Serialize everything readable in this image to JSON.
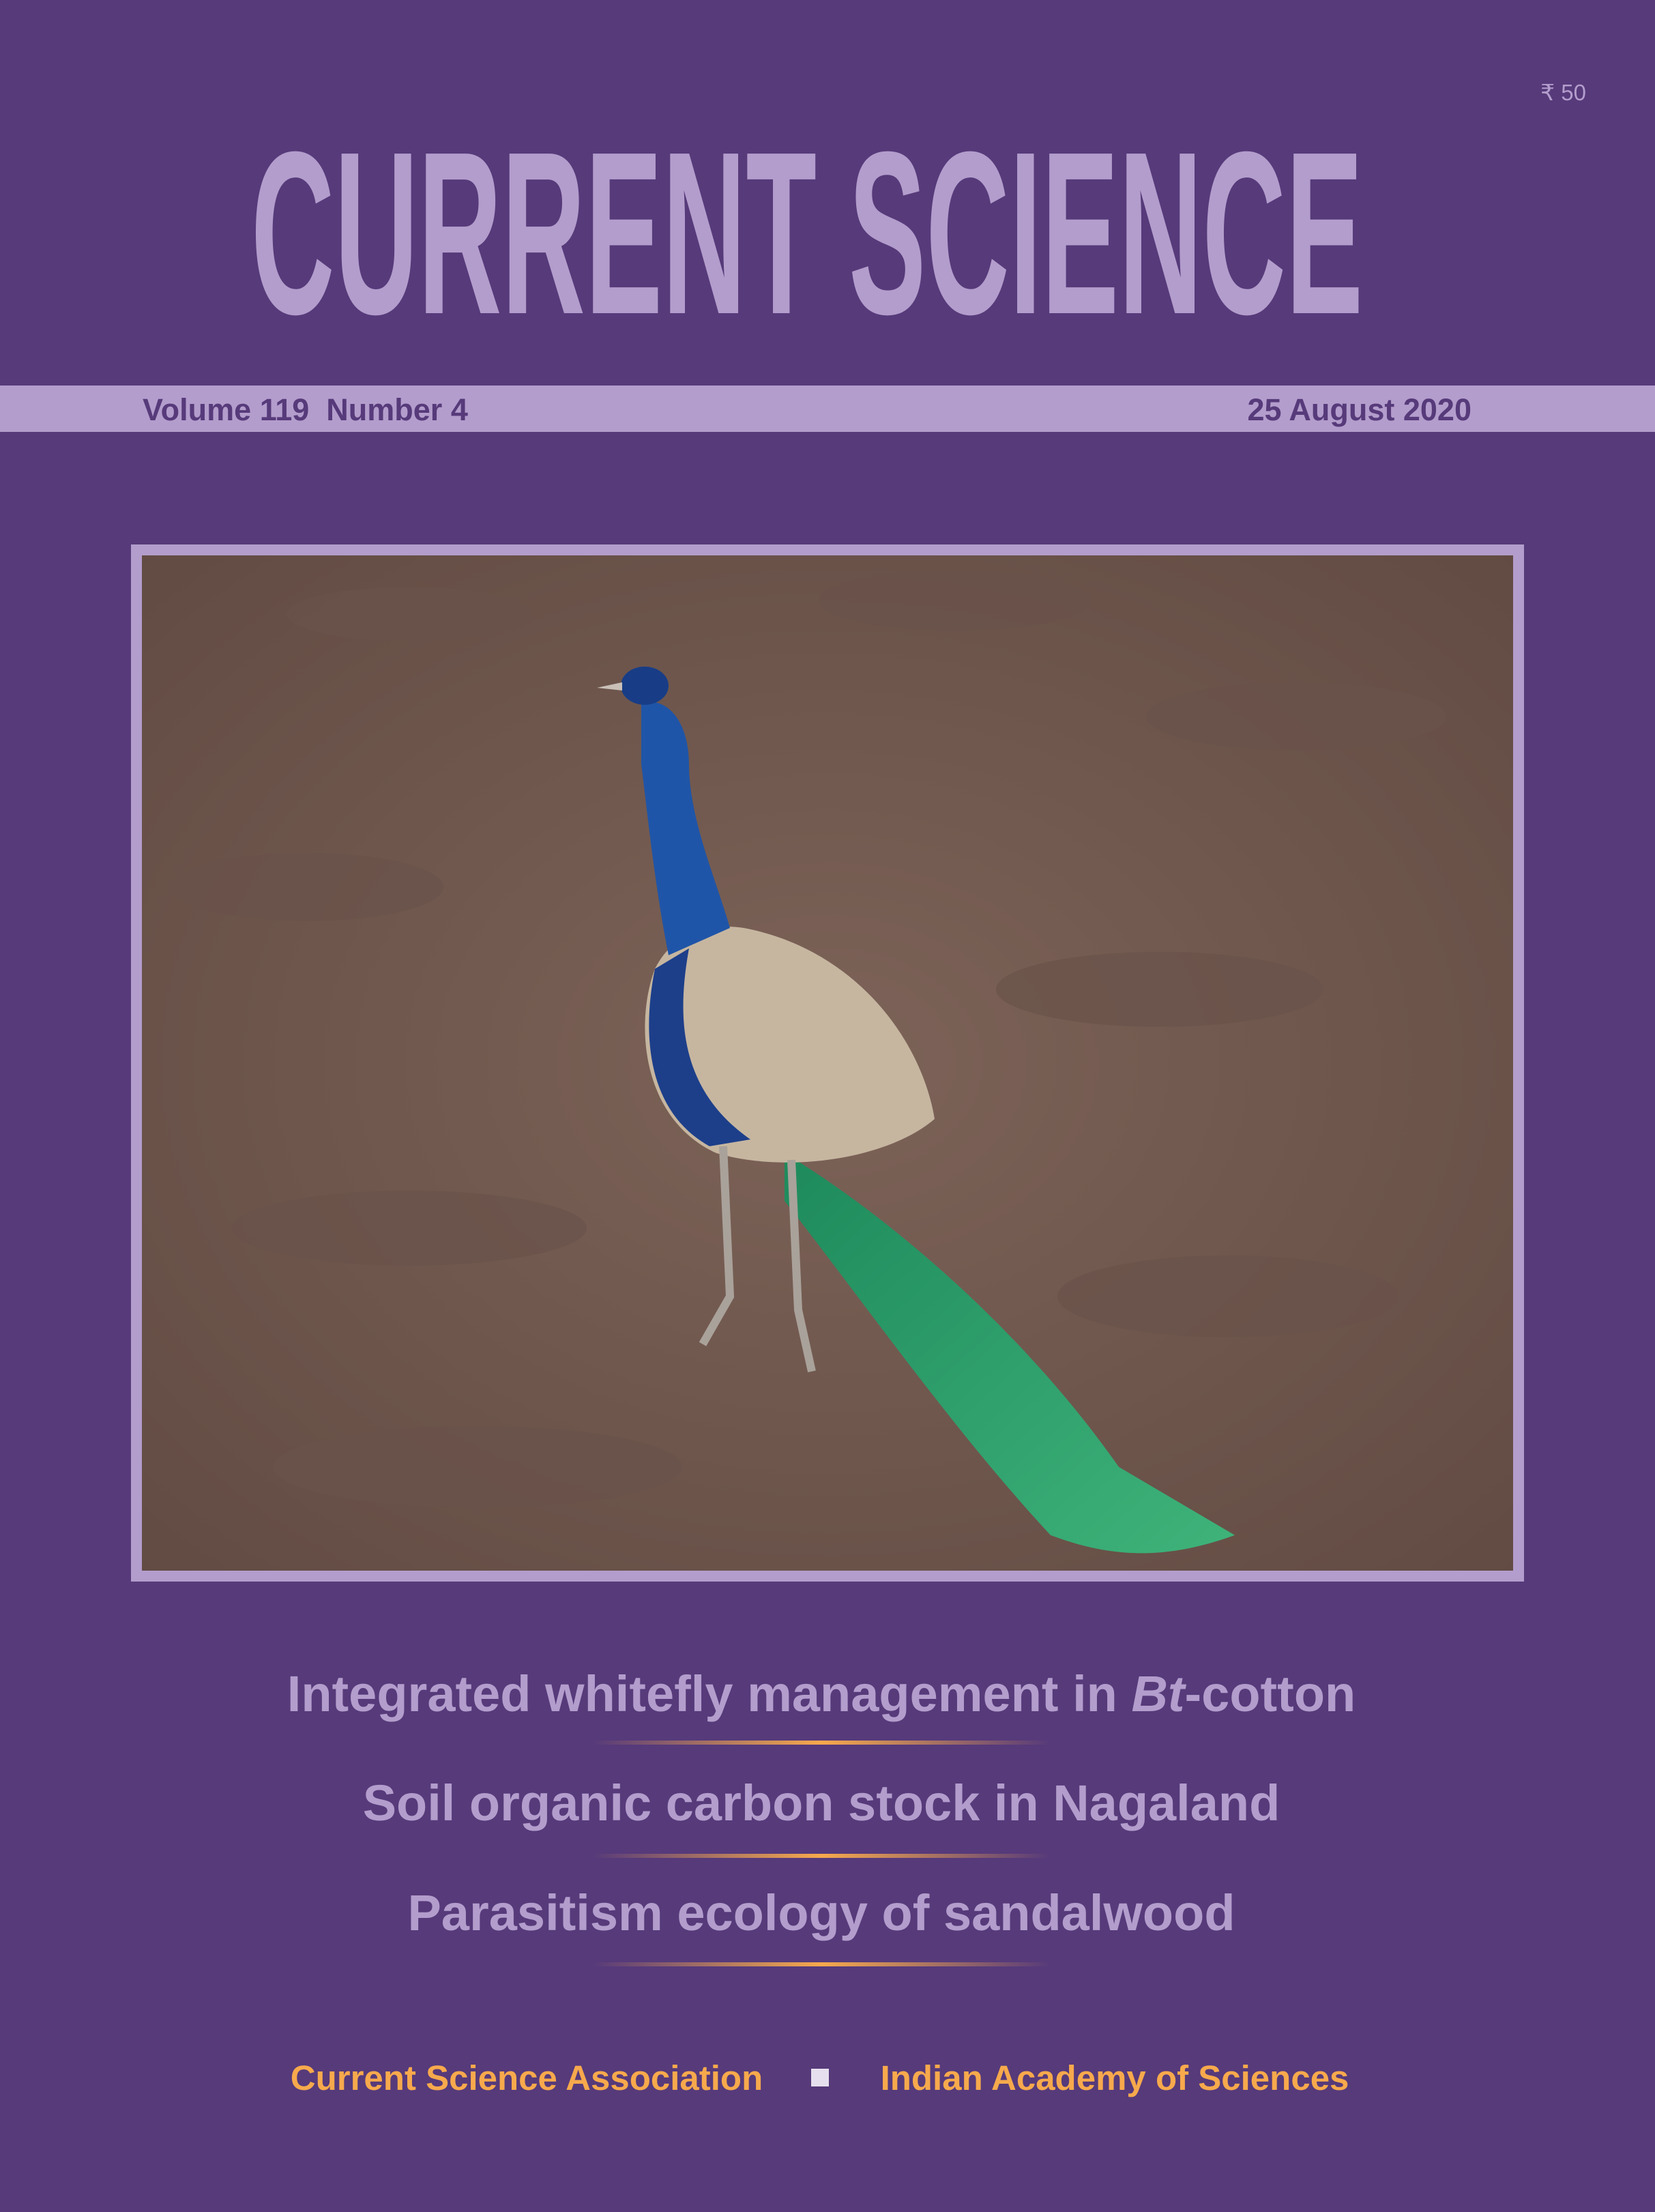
{
  "price": "₹ 50",
  "masthead": "CURRENT SCIENCE",
  "issue": {
    "volume_number": "Volume 119  Number 4",
    "date": "25 August 2020"
  },
  "headlines": [
    {
      "parts": [
        "Integrated whitefly management in ",
        "Bt",
        "-cotton"
      ]
    },
    {
      "parts": [
        "Soil organic carbon stock in Nagaland"
      ]
    },
    {
      "parts": [
        "Parasitism ecology of sandalwood"
      ]
    }
  ],
  "publishers": [
    "Current Science Association",
    "Indian Academy of Sciences"
  ]
}
